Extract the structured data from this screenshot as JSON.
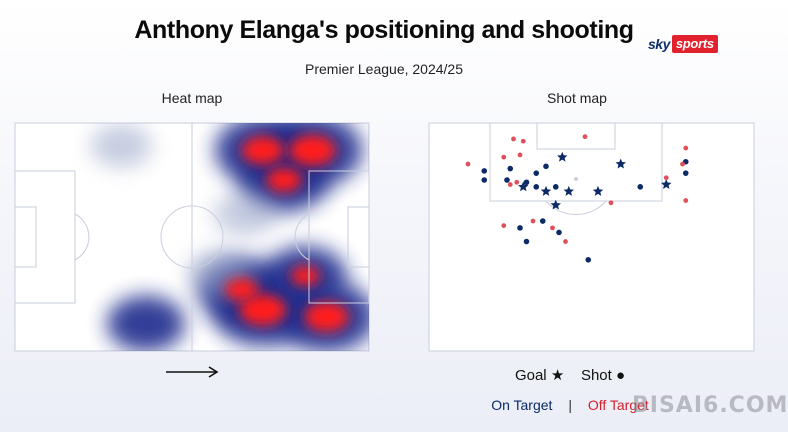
{
  "title": "Anthony Elanga's positioning and shooting",
  "subtitle": "Premier League, 2024/25",
  "logo": {
    "sky": "sky",
    "sports": "sports"
  },
  "heat_map": {
    "label": "Heat map"
  },
  "shot_map": {
    "label": "Shot map"
  },
  "legend": {
    "goal_label": "Goal",
    "goal_symbol": "★",
    "shot_label": "Shot",
    "shot_symbol": "●",
    "on_target": "On Target",
    "separator": "|",
    "off_target": "Off Target"
  },
  "watermark": "BISAI6.COM",
  "colors": {
    "on_target": "#0b2a66",
    "off_target": "#e0505a",
    "pitch_line": "#c9cede",
    "heat_core": "#ff1a1a",
    "heat_mid": "#1f2a8c"
  },
  "chart_data": [
    {
      "type": "heatmap",
      "title": "Heat map",
      "direction_of_play": "left-to-right",
      "hotspots_note": "intensity 0-1 at pitch fractions (x along length, y across width)",
      "hotspots": [
        {
          "x": 0.84,
          "y": 0.12,
          "intensity": 1.0
        },
        {
          "x": 0.7,
          "y": 0.12,
          "intensity": 0.9
        },
        {
          "x": 0.76,
          "y": 0.25,
          "intensity": 0.75
        },
        {
          "x": 0.7,
          "y": 0.82,
          "intensity": 1.0
        },
        {
          "x": 0.88,
          "y": 0.85,
          "intensity": 0.95
        },
        {
          "x": 0.64,
          "y": 0.73,
          "intensity": 0.7
        },
        {
          "x": 0.82,
          "y": 0.67,
          "intensity": 0.6
        },
        {
          "x": 0.37,
          "y": 0.88,
          "intensity": 0.5
        },
        {
          "x": 0.58,
          "y": 0.66,
          "intensity": 0.25
        },
        {
          "x": 0.3,
          "y": 0.1,
          "intensity": 0.12
        },
        {
          "x": 0.65,
          "y": 0.4,
          "intensity": 0.15
        }
      ]
    },
    {
      "type": "scatter",
      "title": "Shot map",
      "coordinate_note": "x across pitch width (0-100, left touchline to right), y distance from goal line (0-100 = half-pitch depth)",
      "series": [
        {
          "name": "Goal",
          "target": "On Target",
          "points": [
            {
              "x": 41,
              "y": 15
            },
            {
              "x": 59,
              "y": 18
            },
            {
              "x": 73,
              "y": 27
            },
            {
              "x": 29,
              "y": 28
            },
            {
              "x": 36,
              "y": 30
            },
            {
              "x": 43,
              "y": 30
            },
            {
              "x": 52,
              "y": 30
            },
            {
              "x": 39,
              "y": 36
            }
          ]
        },
        {
          "name": "Shot",
          "target": "On Target",
          "points": [
            {
              "x": 17,
              "y": 21
            },
            {
              "x": 17,
              "y": 25
            },
            {
              "x": 36,
              "y": 19
            },
            {
              "x": 25,
              "y": 20
            },
            {
              "x": 33,
              "y": 22
            },
            {
              "x": 24,
              "y": 25
            },
            {
              "x": 30,
              "y": 26
            },
            {
              "x": 33,
              "y": 28
            },
            {
              "x": 39,
              "y": 28
            },
            {
              "x": 79,
              "y": 17
            },
            {
              "x": 79,
              "y": 22
            },
            {
              "x": 65,
              "y": 28
            },
            {
              "x": 35,
              "y": 43
            },
            {
              "x": 28,
              "y": 46
            },
            {
              "x": 30,
              "y": 52
            },
            {
              "x": 40,
              "y": 48
            },
            {
              "x": 49,
              "y": 60
            }
          ]
        },
        {
          "name": "Shot",
          "target": "Off Target",
          "points": [
            {
              "x": 12,
              "y": 18
            },
            {
              "x": 26,
              "y": 7
            },
            {
              "x": 29,
              "y": 8
            },
            {
              "x": 28,
              "y": 14
            },
            {
              "x": 23,
              "y": 15
            },
            {
              "x": 48,
              "y": 6
            },
            {
              "x": 79,
              "y": 11
            },
            {
              "x": 78,
              "y": 18
            },
            {
              "x": 73,
              "y": 24
            },
            {
              "x": 79,
              "y": 34
            },
            {
              "x": 25,
              "y": 27
            },
            {
              "x": 27,
              "y": 26
            },
            {
              "x": 56,
              "y": 35
            },
            {
              "x": 23,
              "y": 45
            },
            {
              "x": 32,
              "y": 43
            },
            {
              "x": 38,
              "y": 46
            },
            {
              "x": 42,
              "y": 52
            }
          ]
        }
      ]
    }
  ]
}
